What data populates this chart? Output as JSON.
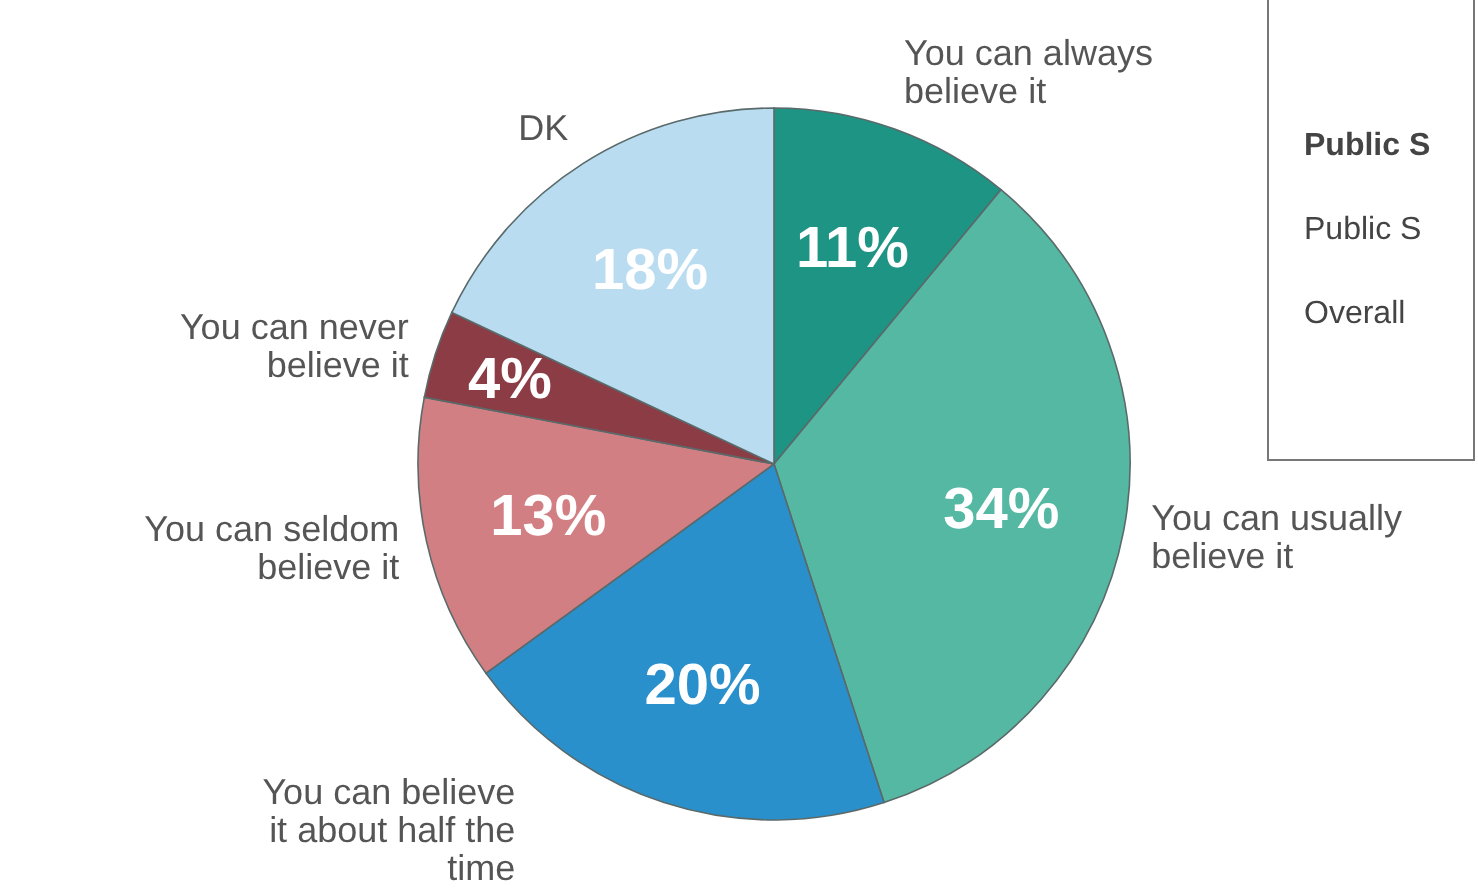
{
  "chart_data": {
    "type": "pie",
    "categories": [
      "You can always believe it",
      "You can usually believe it",
      "You can believe it about half the time",
      "You can seldom believe it",
      "You can never believe it",
      "DK"
    ],
    "values": [
      11,
      34,
      20,
      13,
      4,
      18
    ],
    "colors": [
      "#1e9484",
      "#55b8a2",
      "#2a90cc",
      "#d27f84",
      "#8c3c44",
      "#b9dcf1"
    ],
    "value_labels": [
      "11%",
      "34%",
      "20%",
      "13%",
      "4%",
      "18%"
    ],
    "annotations": [
      "Public S",
      "Public S",
      "Overall"
    ]
  }
}
